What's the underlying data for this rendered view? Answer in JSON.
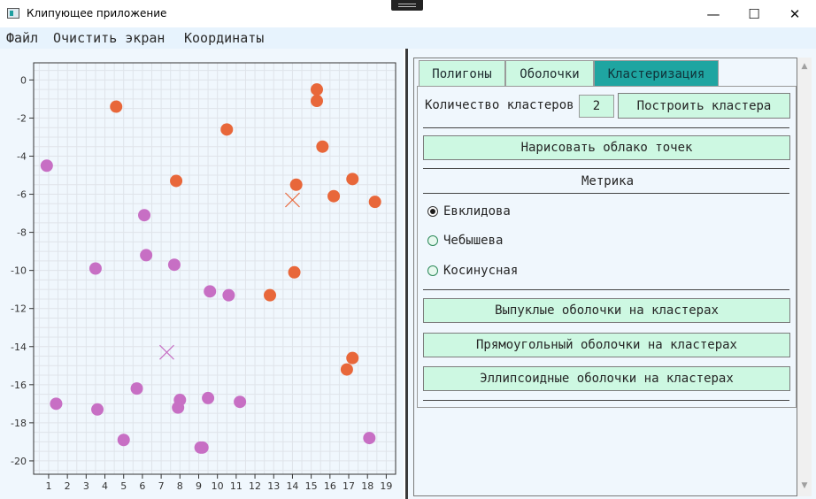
{
  "window": {
    "title": "Клипующее приложение",
    "minimize": "—",
    "maximize": "☐",
    "close": "✕"
  },
  "menu": {
    "items": [
      "Файл",
      "Очистить экран",
      "Координаты"
    ]
  },
  "chart_data": {
    "type": "scatter",
    "xlim": [
      0.2,
      19.5
    ],
    "ylim": [
      -20.7,
      0.9
    ],
    "xticks": [
      1,
      2,
      3,
      4,
      5,
      6,
      7,
      8,
      9,
      10,
      11,
      12,
      13,
      14,
      15,
      16,
      17,
      18,
      19
    ],
    "yticks": [
      0,
      -2,
      -4,
      -6,
      -8,
      -10,
      -12,
      -14,
      -16,
      -18,
      -20
    ],
    "grid": true,
    "series": [
      {
        "color": "#e8673a",
        "points": [
          [
            15.3,
            -0.5
          ],
          [
            15.3,
            -1.1
          ],
          [
            4.6,
            -1.4
          ],
          [
            10.5,
            -2.6
          ],
          [
            15.6,
            -3.5
          ],
          [
            7.8,
            -5.3
          ],
          [
            17.2,
            -5.2
          ],
          [
            14.2,
            -5.5
          ],
          [
            16.2,
            -6.1
          ],
          [
            18.4,
            -6.4
          ],
          [
            14.1,
            -10.1
          ],
          [
            12.8,
            -11.3
          ],
          [
            17.2,
            -14.6
          ],
          [
            16.9,
            -15.2
          ]
        ],
        "centroid": [
          14.0,
          -6.3
        ]
      },
      {
        "color": "#c76fc4",
        "points": [
          [
            0.9,
            -4.5
          ],
          [
            6.1,
            -7.1
          ],
          [
            6.2,
            -9.2
          ],
          [
            3.5,
            -9.9
          ],
          [
            7.7,
            -9.7
          ],
          [
            9.6,
            -11.1
          ],
          [
            10.6,
            -11.3
          ],
          [
            5.7,
            -16.2
          ],
          [
            9.5,
            -16.7
          ],
          [
            8.0,
            -16.8
          ],
          [
            11.2,
            -16.9
          ],
          [
            1.4,
            -17.0
          ],
          [
            3.6,
            -17.3
          ],
          [
            7.9,
            -17.2
          ],
          [
            5.0,
            -18.9
          ],
          [
            18.1,
            -18.8
          ],
          [
            9.2,
            -19.3
          ],
          [
            9.1,
            -19.3
          ]
        ],
        "centroid": [
          7.3,
          -14.3
        ]
      }
    ]
  },
  "tabs": [
    {
      "label": "Полигоны"
    },
    {
      "label": "Оболочки"
    },
    {
      "label": "Кластеризация"
    }
  ],
  "clustering": {
    "count_label": "Количество кластеров",
    "count_value": "2",
    "build_button": "Построить кластера",
    "draw_cloud_button": "Нарисовать облако точек",
    "metric_header": "Метрика",
    "metrics": [
      "Евклидова",
      "Чебышева",
      "Косинусная"
    ],
    "selected_metric": "Евклидова",
    "convex_button": "Выпуклые оболочки на кластерах",
    "rect_button": "Прямоугольный оболочки на кластерах",
    "ellipse_button": "Эллипсоидные оболочки на кластерах"
  }
}
